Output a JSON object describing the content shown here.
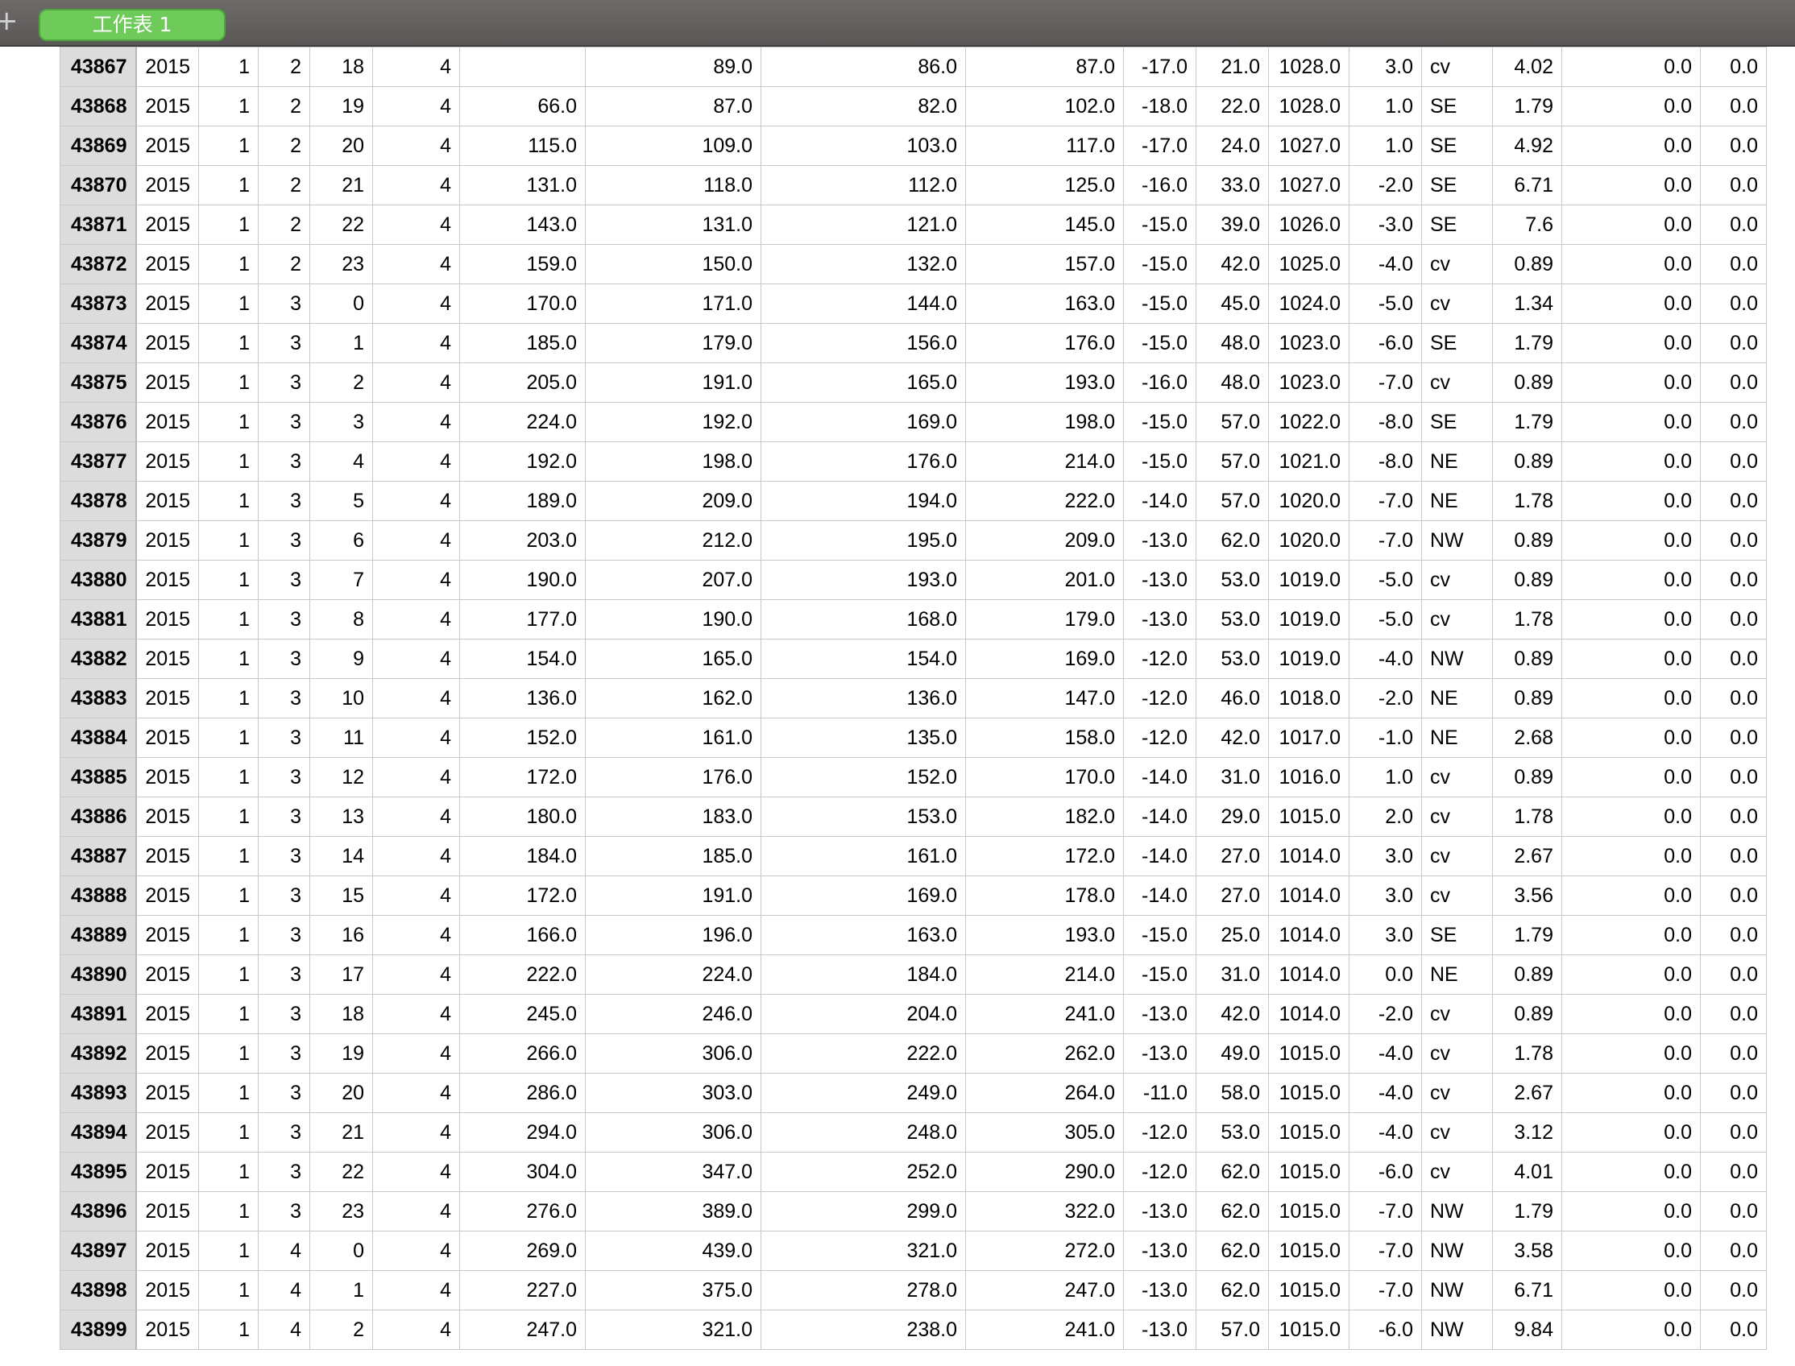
{
  "toolbar": {
    "new_sheet_icon": "plus-icon",
    "tab_label": "工作表 1"
  },
  "table": {
    "rows": [
      [
        "43867",
        "2015",
        "1",
        "2",
        "18",
        "4",
        "",
        "89.0",
        "86.0",
        "87.0",
        "-17.0",
        "21.0",
        "1028.0",
        "3.0",
        "cv",
        "4.02",
        "0.0",
        "0.0"
      ],
      [
        "43868",
        "2015",
        "1",
        "2",
        "19",
        "4",
        "66.0",
        "87.0",
        "82.0",
        "102.0",
        "-18.0",
        "22.0",
        "1028.0",
        "1.0",
        "SE",
        "1.79",
        "0.0",
        "0.0"
      ],
      [
        "43869",
        "2015",
        "1",
        "2",
        "20",
        "4",
        "115.0",
        "109.0",
        "103.0",
        "117.0",
        "-17.0",
        "24.0",
        "1027.0",
        "1.0",
        "SE",
        "4.92",
        "0.0",
        "0.0"
      ],
      [
        "43870",
        "2015",
        "1",
        "2",
        "21",
        "4",
        "131.0",
        "118.0",
        "112.0",
        "125.0",
        "-16.0",
        "33.0",
        "1027.0",
        "-2.0",
        "SE",
        "6.71",
        "0.0",
        "0.0"
      ],
      [
        "43871",
        "2015",
        "1",
        "2",
        "22",
        "4",
        "143.0",
        "131.0",
        "121.0",
        "145.0",
        "-15.0",
        "39.0",
        "1026.0",
        "-3.0",
        "SE",
        "7.6",
        "0.0",
        "0.0"
      ],
      [
        "43872",
        "2015",
        "1",
        "2",
        "23",
        "4",
        "159.0",
        "150.0",
        "132.0",
        "157.0",
        "-15.0",
        "42.0",
        "1025.0",
        "-4.0",
        "cv",
        "0.89",
        "0.0",
        "0.0"
      ],
      [
        "43873",
        "2015",
        "1",
        "3",
        "0",
        "4",
        "170.0",
        "171.0",
        "144.0",
        "163.0",
        "-15.0",
        "45.0",
        "1024.0",
        "-5.0",
        "cv",
        "1.34",
        "0.0",
        "0.0"
      ],
      [
        "43874",
        "2015",
        "1",
        "3",
        "1",
        "4",
        "185.0",
        "179.0",
        "156.0",
        "176.0",
        "-15.0",
        "48.0",
        "1023.0",
        "-6.0",
        "SE",
        "1.79",
        "0.0",
        "0.0"
      ],
      [
        "43875",
        "2015",
        "1",
        "3",
        "2",
        "4",
        "205.0",
        "191.0",
        "165.0",
        "193.0",
        "-16.0",
        "48.0",
        "1023.0",
        "-7.0",
        "cv",
        "0.89",
        "0.0",
        "0.0"
      ],
      [
        "43876",
        "2015",
        "1",
        "3",
        "3",
        "4",
        "224.0",
        "192.0",
        "169.0",
        "198.0",
        "-15.0",
        "57.0",
        "1022.0",
        "-8.0",
        "SE",
        "1.79",
        "0.0",
        "0.0"
      ],
      [
        "43877",
        "2015",
        "1",
        "3",
        "4",
        "4",
        "192.0",
        "198.0",
        "176.0",
        "214.0",
        "-15.0",
        "57.0",
        "1021.0",
        "-8.0",
        "NE",
        "0.89",
        "0.0",
        "0.0"
      ],
      [
        "43878",
        "2015",
        "1",
        "3",
        "5",
        "4",
        "189.0",
        "209.0",
        "194.0",
        "222.0",
        "-14.0",
        "57.0",
        "1020.0",
        "-7.0",
        "NE",
        "1.78",
        "0.0",
        "0.0"
      ],
      [
        "43879",
        "2015",
        "1",
        "3",
        "6",
        "4",
        "203.0",
        "212.0",
        "195.0",
        "209.0",
        "-13.0",
        "62.0",
        "1020.0",
        "-7.0",
        "NW",
        "0.89",
        "0.0",
        "0.0"
      ],
      [
        "43880",
        "2015",
        "1",
        "3",
        "7",
        "4",
        "190.0",
        "207.0",
        "193.0",
        "201.0",
        "-13.0",
        "53.0",
        "1019.0",
        "-5.0",
        "cv",
        "0.89",
        "0.0",
        "0.0"
      ],
      [
        "43881",
        "2015",
        "1",
        "3",
        "8",
        "4",
        "177.0",
        "190.0",
        "168.0",
        "179.0",
        "-13.0",
        "53.0",
        "1019.0",
        "-5.0",
        "cv",
        "1.78",
        "0.0",
        "0.0"
      ],
      [
        "43882",
        "2015",
        "1",
        "3",
        "9",
        "4",
        "154.0",
        "165.0",
        "154.0",
        "169.0",
        "-12.0",
        "53.0",
        "1019.0",
        "-4.0",
        "NW",
        "0.89",
        "0.0",
        "0.0"
      ],
      [
        "43883",
        "2015",
        "1",
        "3",
        "10",
        "4",
        "136.0",
        "162.0",
        "136.0",
        "147.0",
        "-12.0",
        "46.0",
        "1018.0",
        "-2.0",
        "NE",
        "0.89",
        "0.0",
        "0.0"
      ],
      [
        "43884",
        "2015",
        "1",
        "3",
        "11",
        "4",
        "152.0",
        "161.0",
        "135.0",
        "158.0",
        "-12.0",
        "42.0",
        "1017.0",
        "-1.0",
        "NE",
        "2.68",
        "0.0",
        "0.0"
      ],
      [
        "43885",
        "2015",
        "1",
        "3",
        "12",
        "4",
        "172.0",
        "176.0",
        "152.0",
        "170.0",
        "-14.0",
        "31.0",
        "1016.0",
        "1.0",
        "cv",
        "0.89",
        "0.0",
        "0.0"
      ],
      [
        "43886",
        "2015",
        "1",
        "3",
        "13",
        "4",
        "180.0",
        "183.0",
        "153.0",
        "182.0",
        "-14.0",
        "29.0",
        "1015.0",
        "2.0",
        "cv",
        "1.78",
        "0.0",
        "0.0"
      ],
      [
        "43887",
        "2015",
        "1",
        "3",
        "14",
        "4",
        "184.0",
        "185.0",
        "161.0",
        "172.0",
        "-14.0",
        "27.0",
        "1014.0",
        "3.0",
        "cv",
        "2.67",
        "0.0",
        "0.0"
      ],
      [
        "43888",
        "2015",
        "1",
        "3",
        "15",
        "4",
        "172.0",
        "191.0",
        "169.0",
        "178.0",
        "-14.0",
        "27.0",
        "1014.0",
        "3.0",
        "cv",
        "3.56",
        "0.0",
        "0.0"
      ],
      [
        "43889",
        "2015",
        "1",
        "3",
        "16",
        "4",
        "166.0",
        "196.0",
        "163.0",
        "193.0",
        "-15.0",
        "25.0",
        "1014.0",
        "3.0",
        "SE",
        "1.79",
        "0.0",
        "0.0"
      ],
      [
        "43890",
        "2015",
        "1",
        "3",
        "17",
        "4",
        "222.0",
        "224.0",
        "184.0",
        "214.0",
        "-15.0",
        "31.0",
        "1014.0",
        "0.0",
        "NE",
        "0.89",
        "0.0",
        "0.0"
      ],
      [
        "43891",
        "2015",
        "1",
        "3",
        "18",
        "4",
        "245.0",
        "246.0",
        "204.0",
        "241.0",
        "-13.0",
        "42.0",
        "1014.0",
        "-2.0",
        "cv",
        "0.89",
        "0.0",
        "0.0"
      ],
      [
        "43892",
        "2015",
        "1",
        "3",
        "19",
        "4",
        "266.0",
        "306.0",
        "222.0",
        "262.0",
        "-13.0",
        "49.0",
        "1015.0",
        "-4.0",
        "cv",
        "1.78",
        "0.0",
        "0.0"
      ],
      [
        "43893",
        "2015",
        "1",
        "3",
        "20",
        "4",
        "286.0",
        "303.0",
        "249.0",
        "264.0",
        "-11.0",
        "58.0",
        "1015.0",
        "-4.0",
        "cv",
        "2.67",
        "0.0",
        "0.0"
      ],
      [
        "43894",
        "2015",
        "1",
        "3",
        "21",
        "4",
        "294.0",
        "306.0",
        "248.0",
        "305.0",
        "-12.0",
        "53.0",
        "1015.0",
        "-4.0",
        "cv",
        "3.12",
        "0.0",
        "0.0"
      ],
      [
        "43895",
        "2015",
        "1",
        "3",
        "22",
        "4",
        "304.0",
        "347.0",
        "252.0",
        "290.0",
        "-12.0",
        "62.0",
        "1015.0",
        "-6.0",
        "cv",
        "4.01",
        "0.0",
        "0.0"
      ],
      [
        "43896",
        "2015",
        "1",
        "3",
        "23",
        "4",
        "276.0",
        "389.0",
        "299.0",
        "322.0",
        "-13.0",
        "62.0",
        "1015.0",
        "-7.0",
        "NW",
        "1.79",
        "0.0",
        "0.0"
      ],
      [
        "43897",
        "2015",
        "1",
        "4",
        "0",
        "4",
        "269.0",
        "439.0",
        "321.0",
        "272.0",
        "-13.0",
        "62.0",
        "1015.0",
        "-7.0",
        "NW",
        "3.58",
        "0.0",
        "0.0"
      ],
      [
        "43898",
        "2015",
        "1",
        "4",
        "1",
        "4",
        "227.0",
        "375.0",
        "278.0",
        "247.0",
        "-13.0",
        "62.0",
        "1015.0",
        "-7.0",
        "NW",
        "6.71",
        "0.0",
        "0.0"
      ],
      [
        "43899",
        "2015",
        "1",
        "4",
        "2",
        "4",
        "247.0",
        "321.0",
        "238.0",
        "241.0",
        "-13.0",
        "57.0",
        "1015.0",
        "-6.0",
        "NW",
        "9.84",
        "0.0",
        "0.0"
      ]
    ]
  }
}
